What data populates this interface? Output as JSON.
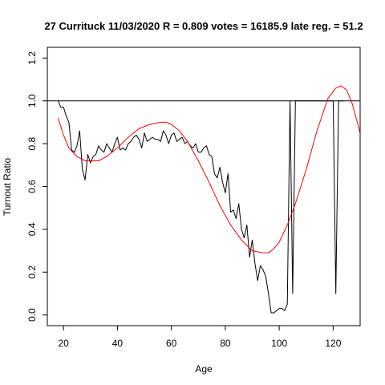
{
  "chart_data": {
    "type": "line",
    "title": "27 Currituck 11/03/2020 R = 0.809 votes = 16185.9 late reg. = 51.2",
    "xlabel": "Age",
    "ylabel": "Turnout Ratio",
    "xlim": [
      14,
      130
    ],
    "ylim": [
      -0.05,
      1.25
    ],
    "x_ticks": [
      20,
      40,
      60,
      80,
      100,
      120
    ],
    "x_tick_labels": [
      "20",
      "40",
      "60",
      "80",
      "100",
      "120"
    ],
    "y_ticks": [
      0.0,
      0.2,
      0.4,
      0.6,
      0.8,
      1.0,
      1.2
    ],
    "y_tick_labels": [
      "0.0",
      "0.2",
      "0.4",
      "0.6",
      "0.8",
      "1.0",
      "1.2"
    ],
    "reference_line": {
      "y": 1.0,
      "color": "#000000"
    },
    "grid": false,
    "series": [
      {
        "color": "#000000",
        "x": [
          18,
          19,
          20,
          21,
          22,
          23,
          24,
          25,
          26,
          27,
          28,
          29,
          30,
          31,
          32,
          33,
          34,
          35,
          36,
          37,
          38,
          39,
          40,
          41,
          42,
          43,
          44,
          45,
          46,
          47,
          48,
          49,
          50,
          51,
          52,
          53,
          54,
          55,
          56,
          57,
          58,
          59,
          60,
          61,
          62,
          63,
          64,
          65,
          66,
          67,
          68,
          69,
          70,
          71,
          72,
          73,
          74,
          75,
          76,
          77,
          78,
          79,
          80,
          81,
          82,
          83,
          84,
          85,
          86,
          87,
          88,
          89,
          90,
          91,
          92,
          93,
          94,
          95,
          96,
          97,
          98,
          99,
          100,
          101,
          102,
          103,
          104,
          105,
          106,
          107,
          108,
          109,
          120,
          121,
          122,
          123,
          124
        ],
        "values": [
          1.0,
          0.97,
          0.97,
          0.93,
          0.9,
          0.77,
          0.76,
          0.79,
          0.86,
          0.68,
          0.63,
          0.75,
          0.71,
          0.74,
          0.75,
          0.79,
          0.77,
          0.76,
          0.8,
          0.78,
          0.76,
          0.8,
          0.83,
          0.77,
          0.78,
          0.77,
          0.8,
          0.81,
          0.83,
          0.84,
          0.82,
          0.78,
          0.85,
          0.81,
          0.82,
          0.83,
          0.82,
          0.82,
          0.81,
          0.86,
          0.84,
          0.8,
          0.84,
          0.85,
          0.81,
          0.82,
          0.83,
          0.8,
          0.81,
          0.79,
          0.78,
          0.8,
          0.76,
          0.76,
          0.78,
          0.79,
          0.75,
          0.74,
          0.66,
          0.64,
          0.69,
          0.62,
          0.57,
          0.66,
          0.48,
          0.49,
          0.45,
          0.52,
          0.4,
          0.36,
          0.42,
          0.27,
          0.35,
          0.24,
          0.16,
          0.23,
          0.21,
          0.18,
          0.1,
          0.01,
          0.01,
          0.02,
          0.03,
          0.03,
          0.02,
          0.05,
          1.0,
          0.1,
          1.0,
          1.0,
          1.0,
          1.0,
          1.0,
          0.1,
          1.0,
          1.0,
          1.0
        ]
      },
      {
        "color": "#ff0000",
        "x": [
          18,
          20,
          22,
          25,
          28,
          30,
          33,
          36,
          40,
          44,
          48,
          52,
          56,
          58,
          60,
          63,
          66,
          70,
          74,
          78,
          82,
          86,
          90,
          94,
          96,
          98,
          100,
          103,
          106,
          110,
          114,
          118,
          121,
          123,
          125,
          127,
          130
        ],
        "values": [
          0.92,
          0.84,
          0.78,
          0.74,
          0.72,
          0.72,
          0.72,
          0.74,
          0.78,
          0.83,
          0.87,
          0.89,
          0.9,
          0.9,
          0.89,
          0.86,
          0.81,
          0.72,
          0.62,
          0.51,
          0.42,
          0.35,
          0.3,
          0.29,
          0.29,
          0.31,
          0.34,
          0.42,
          0.52,
          0.68,
          0.86,
          1.01,
          1.06,
          1.07,
          1.05,
          0.99,
          0.85
        ]
      }
    ]
  }
}
